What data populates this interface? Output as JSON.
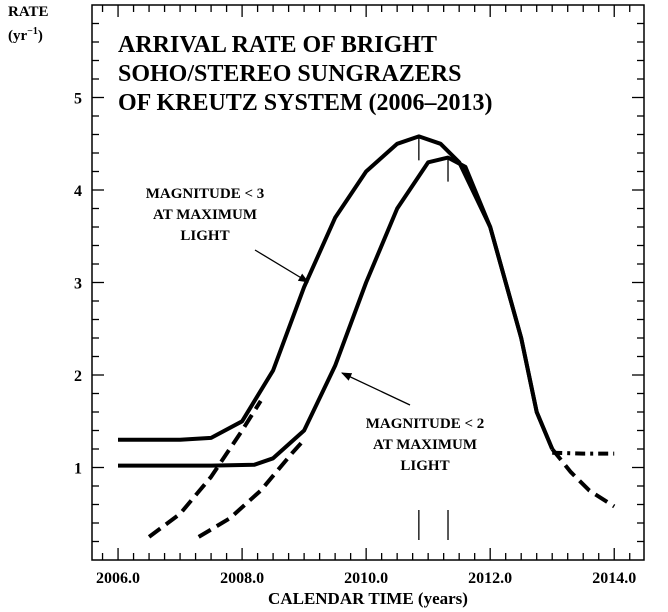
{
  "chart_data": {
    "type": "line",
    "title": [
      "ARRIVAL RATE OF BRIGHT",
      "SOHO/STEREO SUNGRAZERS",
      "OF KREUTZ SYSTEM (2006–2013)"
    ],
    "xlabel": "CALENDAR TIME (years)",
    "ylabel": "RATE",
    "y_unit": {
      "base": "(yr",
      "exponent": "−1",
      "close": ")"
    },
    "annotations": [
      {
        "lines": [
          "MAGNITUDE < 3",
          "AT MAXIMUM",
          "LIGHT"
        ]
      },
      {
        "lines": [
          "MAGNITUDE < 2",
          "AT MAXIMUM",
          "LIGHT"
        ]
      }
    ],
    "color": "#000000",
    "series": [
      {
        "style": "solid",
        "x": [
          2006.0,
          2007.0,
          2007.5,
          2008.0,
          2008.5,
          2009.0,
          2009.5,
          2010.0,
          2010.5,
          2010.85,
          2011.2,
          2011.5,
          2012.0,
          2012.5,
          2012.75,
          2013.0
        ],
        "values": [
          1.3,
          1.3,
          1.32,
          1.5,
          2.05,
          2.95,
          3.7,
          4.2,
          4.5,
          4.58,
          4.5,
          4.3,
          3.6,
          2.4,
          1.6,
          1.2
        ]
      },
      {
        "style": "solid",
        "x": [
          2006.0,
          2007.5,
          2008.2,
          2008.5,
          2009.0,
          2009.5,
          2010.0,
          2010.5,
          2011.0,
          2011.32,
          2011.6,
          2012.0,
          2012.5,
          2012.75,
          2013.0
        ],
        "values": [
          1.02,
          1.02,
          1.03,
          1.1,
          1.4,
          2.1,
          3.0,
          3.8,
          4.3,
          4.35,
          4.25,
          3.6,
          2.4,
          1.6,
          1.2
        ]
      },
      {
        "style": "dashed",
        "x": [
          2006.5,
          2007.0,
          2007.5,
          2008.0,
          2008.3
        ],
        "values": [
          0.25,
          0.5,
          0.9,
          1.4,
          1.72
        ]
      },
      {
        "style": "dashed",
        "x": [
          2007.3,
          2007.8,
          2008.3,
          2008.8,
          2009.0
        ],
        "values": [
          0.25,
          0.45,
          0.75,
          1.15,
          1.3
        ]
      },
      {
        "style": "dashed",
        "x": [
          2013.0,
          2013.3,
          2013.6,
          2014.0
        ],
        "values": [
          1.2,
          0.95,
          0.75,
          0.58
        ]
      },
      {
        "style": "dashdot",
        "x": [
          2013.0,
          2013.5,
          2014.0
        ],
        "values": [
          1.16,
          1.15,
          1.15
        ]
      }
    ],
    "peaks": [
      2010.85,
      2011.32
    ],
    "xlim": [
      2005.58,
      2014.48
    ],
    "ylim": [
      0,
      6
    ],
    "xticks": [
      {
        "value": 2006,
        "label": "2006.0"
      },
      {
        "value": 2008,
        "label": "2008.0"
      },
      {
        "value": 2010,
        "label": "2010.0"
      },
      {
        "value": 2012,
        "label": "2012.0"
      },
      {
        "value": 2014,
        "label": "2014.0"
      }
    ],
    "xticks_minor": [
      2005.75,
      2006.25,
      2006.5,
      2006.75,
      2007,
      2007.25,
      2007.5,
      2007.75,
      2008.25,
      2008.5,
      2008.75,
      2009,
      2009.25,
      2009.5,
      2009.75,
      2010.25,
      2010.5,
      2010.75,
      2011,
      2011.25,
      2011.5,
      2011.75,
      2012.25,
      2012.5,
      2012.75,
      2013,
      2013.25,
      2013.5,
      2013.75,
      2014.25
    ],
    "yticks": [
      1,
      2,
      3,
      4,
      5
    ],
    "yticks_minor": [
      0.2,
      0.4,
      0.6,
      0.8,
      1.2,
      1.4,
      1.6,
      1.8,
      2.2,
      2.4,
      2.6,
      2.8,
      3.2,
      3.4,
      3.6,
      3.8,
      4.2,
      4.4,
      4.6,
      4.8,
      5.2,
      5.4,
      5.6,
      5.8
    ]
  }
}
